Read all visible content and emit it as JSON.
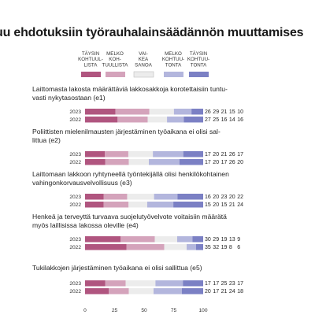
{
  "title": "uu ehdotuksiin työrauhalainsäädännön muuttamises",
  "chart_data": {
    "type": "bar",
    "stacked": true,
    "orientation": "horizontal",
    "xlim": [
      0,
      100
    ],
    "ticks": [
      "0",
      "25",
      "50",
      "75",
      "100"
    ],
    "legend": [
      {
        "lines": [
          "TÄYSIN",
          "KOHTUUL-",
          "LISTA"
        ],
        "color": "#b0557f"
      },
      {
        "lines": [
          "MELKO",
          "KOH-",
          "TUULLISTA"
        ],
        "color": "#d4a3bb"
      },
      {
        "lines": [
          "VAI-",
          "KEA",
          "SANOA"
        ],
        "color": "#ececec"
      },
      {
        "lines": [
          "MELKO",
          "KOHTUU-",
          "TONTA"
        ],
        "color": "#b3b6dd"
      },
      {
        "lines": [
          "TÄYSIN",
          "KOHTUU-",
          "TONTA"
        ],
        "color": "#7b80c4"
      }
    ],
    "questions": [
      {
        "text": [
          "Laittomasta lakosta määrättäviä lakkosakkoja korotettaisiin tuntu-",
          "vasti nykytasostaan (e1)"
        ],
        "rows": [
          {
            "year": "2023",
            "values": [
              26,
              29,
              21,
              15,
              10
            ]
          },
          {
            "year": "2022",
            "values": [
              27,
              25,
              16,
              14,
              16
            ]
          }
        ]
      },
      {
        "text": [
          "Poliittisten mielenilmausten järjestäminen työaikana ei olisi sal-",
          "littua (e2)"
        ],
        "rows": [
          {
            "year": "2023",
            "values": [
              17,
              20,
              21,
              26,
              17
            ]
          },
          {
            "year": "2022",
            "values": [
              17,
              20,
              17,
              26,
              20
            ]
          }
        ]
      },
      {
        "text": [
          "Laittomaan lakkoon ryhtyneellä työntekijällä olisi henkilökohtainen",
          "vahingonkorvausvelvollisuus (e3)"
        ],
        "rows": [
          {
            "year": "2023",
            "values": [
              16,
              20,
              23,
              20,
              22
            ]
          },
          {
            "year": "2022",
            "values": [
              15,
              20,
              15,
              21,
              24
            ]
          }
        ]
      },
      {
        "text": [
          "Henkeä ja terveyttä turvaava suojelutyövelvote voitaisiin määrätä",
          "myös laillisissa lakossa oleville (e4)"
        ],
        "rows": [
          {
            "year": "2023",
            "values": [
              30,
              29,
              19,
              13,
              9
            ]
          },
          {
            "year": "2022",
            "values": [
              35,
              32,
              19,
              8,
              6
            ]
          }
        ]
      },
      {
        "text": [
          "Tukilakkojen järjestäminen työaikana ei olisi sallittua (e5)"
        ],
        "rows": [
          {
            "year": "2023",
            "values": [
              17,
              17,
              25,
              23,
              17
            ]
          },
          {
            "year": "2022",
            "values": [
              20,
              17,
              21,
              24,
              18
            ]
          }
        ]
      }
    ]
  }
}
